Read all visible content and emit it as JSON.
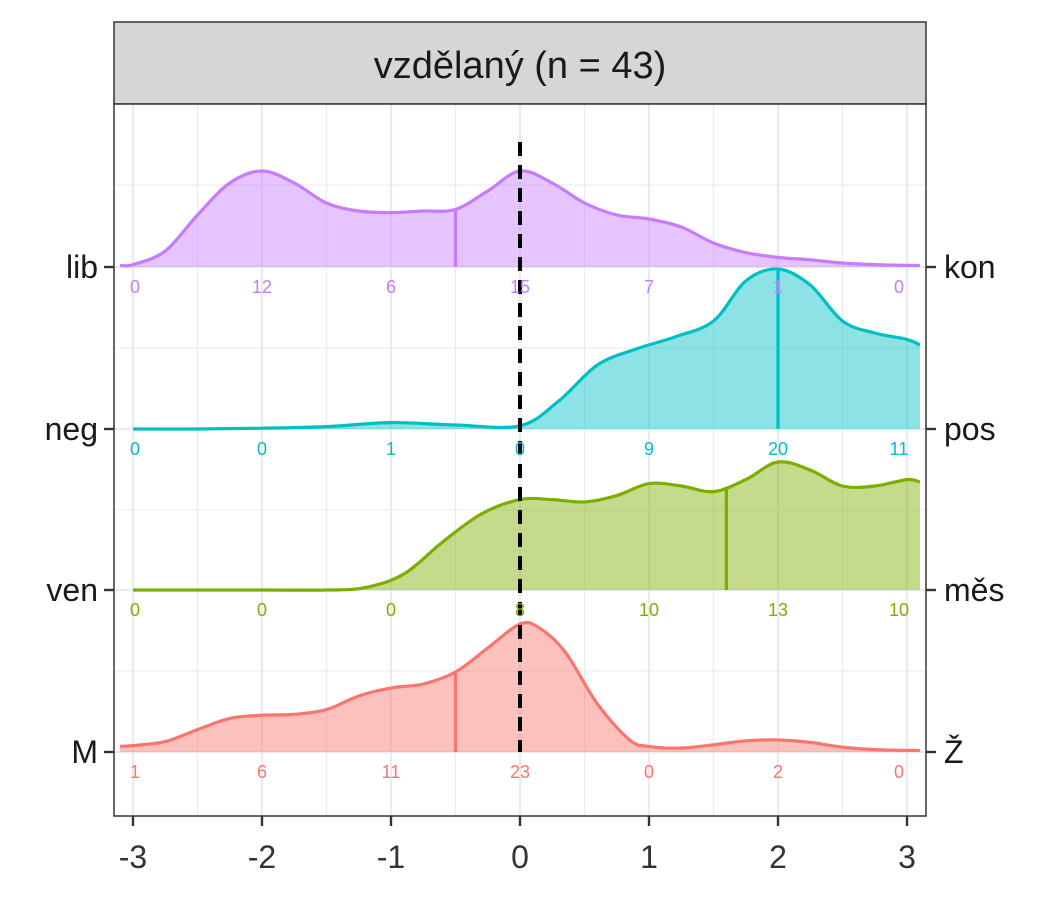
{
  "chart_data": {
    "type": "density-ridgeline",
    "title": "vzdělaný (n = 43)",
    "xlim": [
      -3.1,
      3.1
    ],
    "x_ticks": [
      "-3",
      "-2",
      "-1",
      "0",
      "1",
      "2",
      "3"
    ],
    "reference_line_x": 0,
    "grid": true,
    "rows": [
      {
        "left": "M",
        "right": "Ž",
        "color": "#F8766D",
        "counts": [
          1,
          6,
          11,
          23,
          0,
          2,
          0
        ],
        "median": -0.5,
        "curve": [
          [
            -3.1,
            0.07
          ],
          [
            -3,
            0.08
          ],
          [
            -2.75,
            0.13
          ],
          [
            -2.5,
            0.28
          ],
          [
            -2.25,
            0.42
          ],
          [
            -2,
            0.46
          ],
          [
            -1.75,
            0.47
          ],
          [
            -1.5,
            0.53
          ],
          [
            -1.25,
            0.7
          ],
          [
            -1,
            0.8
          ],
          [
            -0.75,
            0.85
          ],
          [
            -0.5,
            1.0
          ],
          [
            -0.25,
            1.3
          ],
          [
            0,
            1.6
          ],
          [
            0.15,
            1.55
          ],
          [
            0.35,
            1.25
          ],
          [
            0.6,
            0.6
          ],
          [
            0.85,
            0.15
          ],
          [
            1,
            0.07
          ],
          [
            1.25,
            0.05
          ],
          [
            1.5,
            0.09
          ],
          [
            1.75,
            0.14
          ],
          [
            2,
            0.15
          ],
          [
            2.25,
            0.12
          ],
          [
            2.5,
            0.06
          ],
          [
            2.75,
            0.03
          ],
          [
            3,
            0.02
          ],
          [
            3.1,
            0.02
          ]
        ]
      },
      {
        "left": "ven",
        "right": "měs",
        "color": "#7CAE00",
        "counts": [
          0,
          0,
          0,
          8,
          10,
          13,
          10
        ],
        "median": 1.6,
        "curve": [
          [
            -3,
            0
          ],
          [
            -2,
            0
          ],
          [
            -1.5,
            0
          ],
          [
            -1.2,
            0.03
          ],
          [
            -0.9,
            0.2
          ],
          [
            -0.6,
            0.6
          ],
          [
            -0.3,
            0.95
          ],
          [
            0,
            1.13
          ],
          [
            0.25,
            1.13
          ],
          [
            0.5,
            1.1
          ],
          [
            0.75,
            1.18
          ],
          [
            1,
            1.33
          ],
          [
            1.25,
            1.3
          ],
          [
            1.5,
            1.23
          ],
          [
            1.75,
            1.38
          ],
          [
            2,
            1.6
          ],
          [
            2.25,
            1.5
          ],
          [
            2.5,
            1.3
          ],
          [
            2.75,
            1.3
          ],
          [
            3,
            1.38
          ],
          [
            3.1,
            1.35
          ]
        ]
      },
      {
        "left": "neg",
        "right": "pos",
        "color": "#00BFC4",
        "counts": [
          0,
          0,
          1,
          0,
          9,
          20,
          11
        ],
        "median": 2.0,
        "curve": [
          [
            -3,
            0
          ],
          [
            -2.5,
            0
          ],
          [
            -2,
            0.01
          ],
          [
            -1.5,
            0.03
          ],
          [
            -1,
            0.08
          ],
          [
            -0.5,
            0.05
          ],
          [
            0,
            0.04
          ],
          [
            0.3,
            0.35
          ],
          [
            0.6,
            0.8
          ],
          [
            0.9,
            1.0
          ],
          [
            1.2,
            1.15
          ],
          [
            1.5,
            1.35
          ],
          [
            1.75,
            1.85
          ],
          [
            2,
            2.0
          ],
          [
            2.25,
            1.8
          ],
          [
            2.5,
            1.35
          ],
          [
            2.75,
            1.2
          ],
          [
            3,
            1.12
          ],
          [
            3.1,
            1.05
          ]
        ]
      },
      {
        "left": "lib",
        "right": "kon",
        "color": "#C77CFF",
        "counts": [
          0,
          12,
          6,
          15,
          7,
          1,
          0
        ],
        "median": -0.5,
        "curve": [
          [
            -3.1,
            0.02
          ],
          [
            -3,
            0.03
          ],
          [
            -2.75,
            0.2
          ],
          [
            -2.5,
            0.65
          ],
          [
            -2.25,
            1.05
          ],
          [
            -2,
            1.2
          ],
          [
            -1.75,
            1.05
          ],
          [
            -1.5,
            0.8
          ],
          [
            -1.25,
            0.7
          ],
          [
            -1,
            0.68
          ],
          [
            -0.75,
            0.7
          ],
          [
            -0.5,
            0.72
          ],
          [
            -0.25,
            0.95
          ],
          [
            0,
            1.2
          ],
          [
            0.25,
            1.05
          ],
          [
            0.5,
            0.8
          ],
          [
            0.75,
            0.65
          ],
          [
            1,
            0.6
          ],
          [
            1.25,
            0.5
          ],
          [
            1.5,
            0.3
          ],
          [
            1.75,
            0.18
          ],
          [
            2,
            0.12
          ],
          [
            2.25,
            0.09
          ],
          [
            2.5,
            0.05
          ],
          [
            2.75,
            0.03
          ],
          [
            3,
            0.02
          ],
          [
            3.1,
            0.02
          ]
        ]
      }
    ]
  }
}
